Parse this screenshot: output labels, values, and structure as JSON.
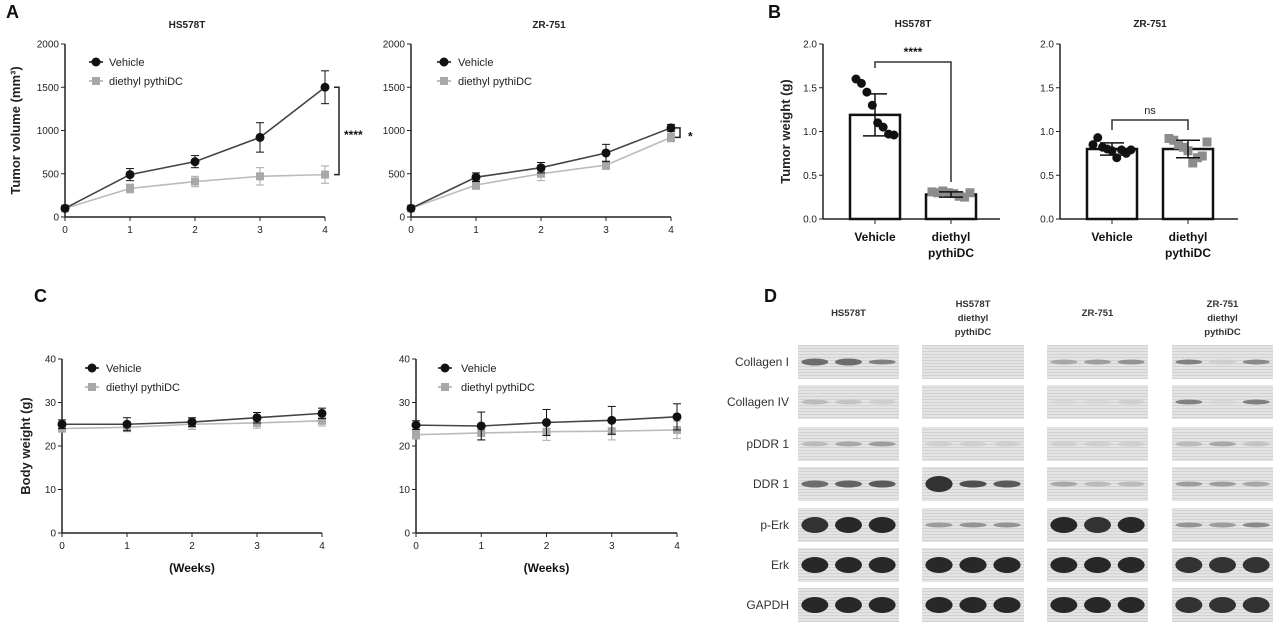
{
  "panels": {
    "a": "A",
    "b": "B",
    "c": "C",
    "d": "D"
  },
  "colors": {
    "vehicle": "#111111",
    "diethyl_pythiDC": "#a8a8a8",
    "bar_points_treated": "#8c8c8c"
  },
  "chart_data": [
    {
      "type": "line",
      "panel": "A",
      "title": "HS578T",
      "xlabel": "",
      "ylabel": "Tumor volume (mm³)",
      "x": [
        0,
        1,
        2,
        3,
        4
      ],
      "xticks": [
        "0",
        "1",
        "2",
        "3",
        "4"
      ],
      "yticks": [
        "0",
        "500",
        "1000",
        "1500",
        "2000"
      ],
      "ylim": [
        0,
        2000
      ],
      "grid": false,
      "legend": "top-left",
      "series": [
        {
          "name": "Vehicle",
          "marker": "circle",
          "values": [
            100,
            490,
            640,
            920,
            1500
          ],
          "error": [
            0,
            70,
            70,
            170,
            190
          ]
        },
        {
          "name": "diethyl pythiDC",
          "marker": "square",
          "values": [
            100,
            330,
            410,
            470,
            490
          ],
          "error": [
            0,
            50,
            60,
            100,
            100
          ]
        }
      ],
      "significance": "****"
    },
    {
      "type": "line",
      "panel": "A",
      "title": "ZR-751",
      "xlabel": "",
      "ylabel": "",
      "x": [
        0,
        1,
        2,
        3,
        4
      ],
      "xticks": [
        "0",
        "1",
        "2",
        "3",
        "4"
      ],
      "yticks": [
        "0",
        "500",
        "1000",
        "1500",
        "2000"
      ],
      "ylim": [
        0,
        2000
      ],
      "grid": false,
      "legend": "top-left",
      "series": [
        {
          "name": "Vehicle",
          "marker": "circle",
          "values": [
            100,
            460,
            570,
            740,
            1030
          ],
          "error": [
            0,
            50,
            60,
            100,
            40
          ]
        },
        {
          "name": "diethyl pythiDC",
          "marker": "square",
          "values": [
            100,
            370,
            500,
            600,
            920
          ],
          "error": [
            0,
            50,
            80,
            50,
            50
          ]
        }
      ],
      "significance": "*"
    },
    {
      "type": "bar",
      "panel": "B",
      "title": "HS578T",
      "ylabel": "Tumor weight (g)",
      "categories": [
        [
          "Vehicle"
        ],
        [
          "diethyl",
          "pythiDC"
        ]
      ],
      "yticks": [
        "0.0",
        "0.5",
        "1.0",
        "1.5",
        "2.0"
      ],
      "ylim": [
        0,
        2
      ],
      "grid": false,
      "values": [
        1.19,
        0.28
      ],
      "error": [
        0.24,
        0.03
      ],
      "points": [
        [
          1.6,
          1.55,
          1.45,
          1.3,
          1.1,
          1.05,
          0.97,
          0.96
        ],
        [
          0.31,
          0.3,
          0.32,
          0.3,
          0.29,
          0.26,
          0.25,
          0.3
        ]
      ],
      "significance": "****"
    },
    {
      "type": "bar",
      "panel": "B",
      "title": "ZR-751",
      "ylabel": "",
      "categories": [
        [
          "Vehicle"
        ],
        [
          "diethyl",
          "pythiDC"
        ]
      ],
      "yticks": [
        "0.0",
        "0.5",
        "1.0",
        "1.5",
        "2.0"
      ],
      "ylim": [
        0,
        2
      ],
      "grid": false,
      "values": [
        0.8,
        0.8
      ],
      "error": [
        0.07,
        0.1
      ],
      "points": [
        [
          0.85,
          0.93,
          0.82,
          0.8,
          0.78,
          0.7,
          0.79,
          0.75,
          0.79
        ],
        [
          0.92,
          0.9,
          0.85,
          0.82,
          0.78,
          0.64,
          0.7,
          0.72,
          0.88
        ]
      ],
      "significance": "ns"
    },
    {
      "type": "line",
      "panel": "C",
      "title": "",
      "xlabel": "(Weeks)",
      "ylabel": "Body weight (g)",
      "x": [
        0,
        1,
        2,
        3,
        4
      ],
      "xticks": [
        "0",
        "1",
        "2",
        "3",
        "4"
      ],
      "yticks": [
        "0",
        "10",
        "20",
        "30",
        "40"
      ],
      "ylim": [
        0,
        40
      ],
      "grid": false,
      "legend": "top-left",
      "series": [
        {
          "name": "Vehicle",
          "marker": "circle",
          "values": [
            25,
            25,
            25.5,
            26.5,
            27.5
          ],
          "error": [
            1,
            1.5,
            1,
            1.2,
            1.2
          ]
        },
        {
          "name": "diethyl pythiDC",
          "marker": "square",
          "values": [
            24,
            24.3,
            25,
            25.3,
            25.8
          ],
          "error": [
            0.8,
            1,
            1.2,
            1.2,
            1.2
          ]
        }
      ]
    },
    {
      "type": "line",
      "panel": "C",
      "title": "",
      "xlabel": "(Weeks)",
      "ylabel": "",
      "x": [
        0,
        1,
        2,
        3,
        4
      ],
      "xticks": [
        "0",
        "1",
        "2",
        "3",
        "4"
      ],
      "yticks": [
        "0",
        "10",
        "20",
        "30",
        "40"
      ],
      "ylim": [
        0,
        40
      ],
      "grid": false,
      "legend": "top-left",
      "series": [
        {
          "name": "Vehicle",
          "marker": "circle",
          "values": [
            24.8,
            24.6,
            25.4,
            25.9,
            26.7
          ],
          "error": [
            1,
            3.2,
            3,
            3.2,
            3
          ]
        },
        {
          "name": "diethyl pythiDC",
          "marker": "square",
          "values": [
            22.6,
            23,
            23.3,
            23.4,
            23.7
          ],
          "error": [
            1,
            1.6,
            2,
            2,
            2
          ]
        }
      ]
    }
  ],
  "western_blot": {
    "groups": [
      [
        "HS578T"
      ],
      [
        "HS578T",
        "diethyl",
        "pythiDC"
      ],
      [
        "ZR-751"
      ],
      [
        "ZR-751",
        "diethyl",
        "pythiDC"
      ]
    ],
    "rows": [
      {
        "label": "Collagen I",
        "intensity": [
          [
            0.6,
            0.6,
            0.5
          ],
          [
            0,
            0,
            0
          ],
          [
            0.3,
            0.35,
            0.4
          ],
          [
            0.5,
            0.1,
            0.45
          ]
        ]
      },
      {
        "label": "Collagen IV",
        "intensity": [
          [
            0.2,
            0.15,
            0.1
          ],
          [
            0,
            0,
            0
          ],
          [
            0.05,
            0.05,
            0.1
          ],
          [
            0.5,
            0.05,
            0.5
          ]
        ]
      },
      {
        "label": "pDDR 1",
        "intensity": [
          [
            0.2,
            0.3,
            0.35
          ],
          [
            0.1,
            0.1,
            0.1
          ],
          [
            0.1,
            0.1,
            0.1
          ],
          [
            0.2,
            0.3,
            0.15
          ]
        ]
      },
      {
        "label": "DDR 1",
        "intensity": [
          [
            0.6,
            0.65,
            0.7
          ],
          [
            0.9,
            0.75,
            0.7
          ],
          [
            0.3,
            0.2,
            0.2
          ],
          [
            0.35,
            0.35,
            0.3
          ]
        ]
      },
      {
        "label": "p-Erk",
        "intensity": [
          [
            0.9,
            0.95,
            0.95
          ],
          [
            0.35,
            0.4,
            0.4
          ],
          [
            0.95,
            0.9,
            0.95
          ],
          [
            0.4,
            0.35,
            0.45
          ]
        ]
      },
      {
        "label": "Erk",
        "intensity": [
          [
            0.95,
            0.95,
            0.95
          ],
          [
            0.95,
            0.95,
            0.95
          ],
          [
            0.95,
            0.95,
            0.95
          ],
          [
            0.9,
            0.9,
            0.9
          ]
        ]
      },
      {
        "label": "GAPDH",
        "intensity": [
          [
            0.95,
            0.95,
            0.95
          ],
          [
            0.95,
            0.95,
            0.95
          ],
          [
            0.95,
            0.95,
            0.95
          ],
          [
            0.9,
            0.9,
            0.9
          ]
        ]
      }
    ]
  }
}
